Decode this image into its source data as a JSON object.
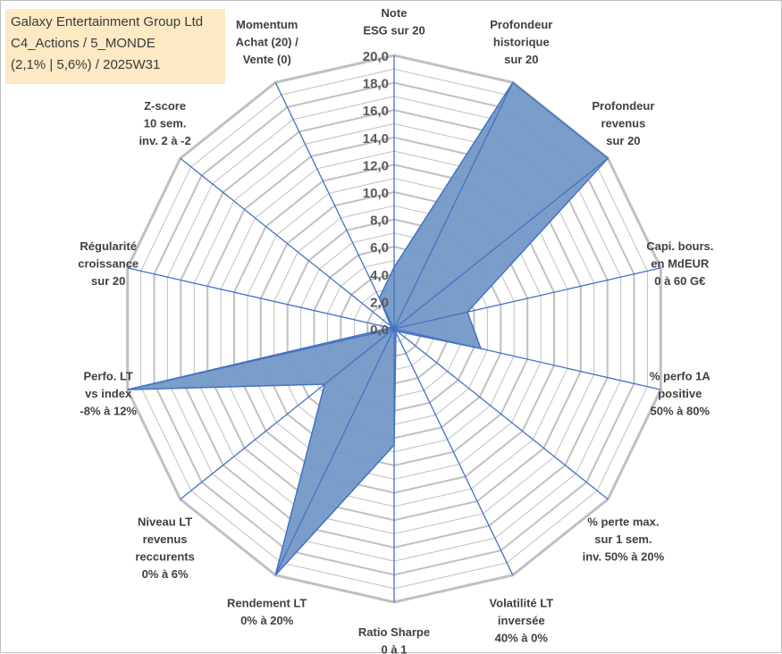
{
  "title_box": {
    "line1": "Galaxy Entertainment Group Ltd",
    "line2": "C4_Actions / 5_MONDE",
    "line3": "(2,1% | 5,6%) / 2025W31"
  },
  "chart_data": {
    "type": "radar",
    "r_max": 20,
    "r_ticks": [
      "0,0",
      "2,0",
      "4,0",
      "6,0",
      "8,0",
      "10,0",
      "12,0",
      "14,0",
      "16,0",
      "18,0",
      "20,0"
    ],
    "categories": [
      [
        "Note",
        "ESG sur 20"
      ],
      [
        "Profondeur",
        "historique",
        "sur 20"
      ],
      [
        "Profondeur",
        "revenus",
        "sur 20"
      ],
      [
        "Capi. bours.",
        "en MdEUR",
        "0 à 60 G€"
      ],
      [
        "% perfo 1A",
        "positive",
        "50% à 80%"
      ],
      [
        "% perte max.",
        "sur 1 sem.",
        "inv. 50% à 20%"
      ],
      [
        "Volatilité LT",
        "inversée",
        "40% à 0%"
      ],
      [
        "Ratio Sharpe",
        "0 à 1"
      ],
      [
        "Rendement LT",
        "0% à 20%"
      ],
      [
        "Niveau LT",
        "revenus",
        "reccurents",
        "0% à 6%"
      ],
      [
        "Perfo. LT",
        "vs index",
        "-8% à 12%"
      ],
      [
        "Régularité",
        "croissance",
        "sur 20"
      ],
      [
        "Z-score",
        "10 sem.",
        "inv. 2 à -2"
      ],
      [
        "Momentum",
        "Achat (20) /",
        "Vente (0)"
      ]
    ],
    "values": [
      4.5,
      20,
      20,
      5.5,
      6.5,
      0.3,
      0.3,
      8.5,
      20,
      6.5,
      20,
      0.3,
      0.3,
      2.5
    ],
    "series_color": "#7399c6",
    "series_edge": "#4472c4",
    "grid_color": "#c0c0c0",
    "spoke_color": "#4472c4"
  }
}
